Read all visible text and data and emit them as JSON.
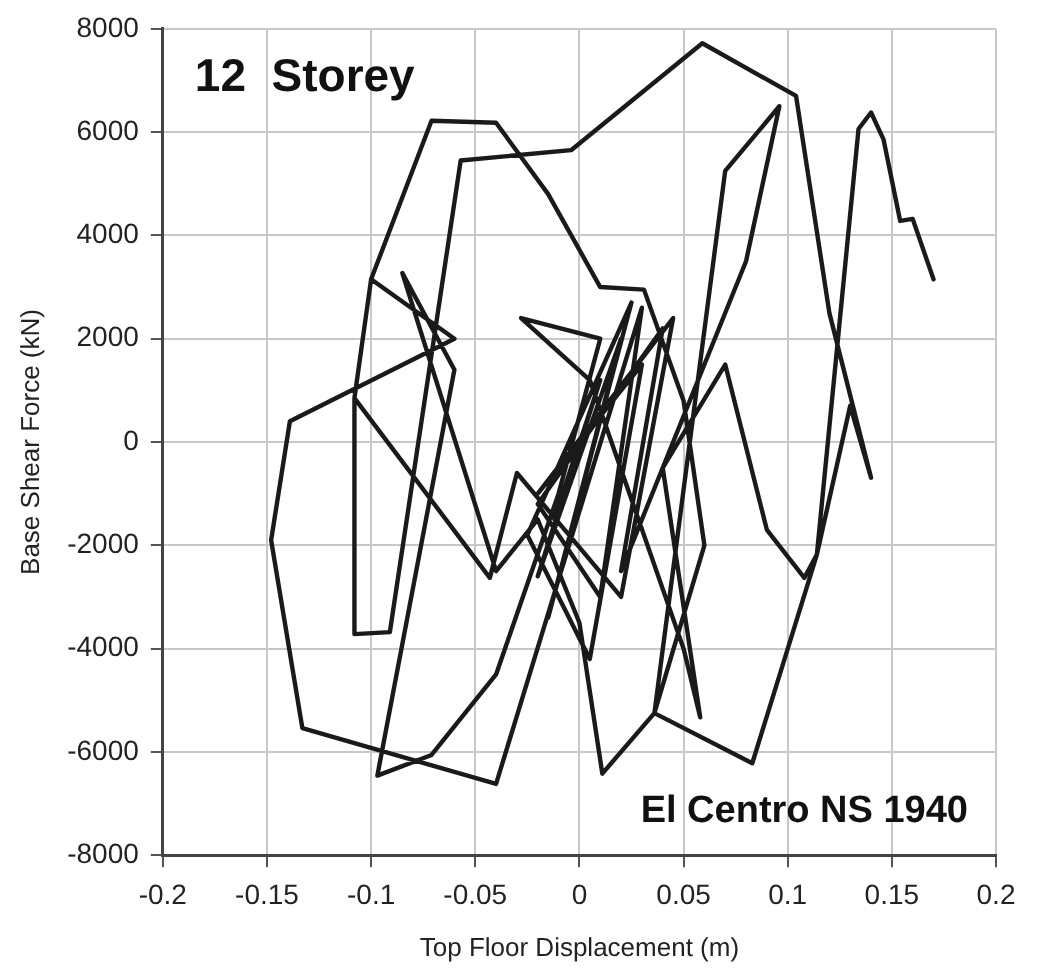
{
  "chart_data": {
    "type": "line",
    "xlabel": "Top Floor Displacement (m)",
    "ylabel": "Base Shear Force (kN)",
    "annotations": [
      "12  Storey",
      "El Centro NS 1940"
    ],
    "xlim": [
      -0.2,
      0.2
    ],
    "xticks": [
      -0.2,
      -0.15,
      -0.1,
      -0.05,
      0,
      0.05,
      0.1,
      0.15,
      0.2
    ],
    "ylim": [
      -8000,
      8000
    ],
    "yticks": [
      -8000,
      -6000,
      -4000,
      -2000,
      0,
      2000,
      4000,
      6000,
      8000
    ],
    "grid": true,
    "legend": false,
    "marker": "none",
    "line_style": "solid",
    "series": [
      {
        "color": "#1a1a1a",
        "x": [
          0,
          -0.012,
          0.01,
          -0.02,
          0.02,
          -0.015,
          0.025,
          -0.025,
          0.005,
          0.03,
          -0.02,
          0.045,
          0.02,
          -0.03,
          -0.043,
          -0.108,
          -0.1,
          -0.071,
          -0.04,
          -0.015,
          0.01,
          0.031,
          0.05,
          0.06,
          0.036,
          0.011,
          0,
          -0.02,
          -0.04,
          -0.085,
          -0.06,
          -0.097,
          -0.071,
          -0.04,
          -0.01,
          0.01,
          -0.028,
          0.005,
          0.05,
          0.058,
          0.04,
          0.07,
          0.09,
          0.108,
          0.114,
          0.13,
          0.14,
          0.12,
          0.104,
          0.059,
          -0.004,
          -0.057,
          -0.091,
          -0.108,
          -0.108,
          -0.1,
          -0.06,
          -0.139,
          -0.148,
          -0.133,
          -0.04,
          -0.005,
          0.03,
          0.01,
          -0.02,
          0.04,
          0.02,
          0.08,
          0.096,
          0.07,
          0.036,
          0.083,
          0.114,
          0.134,
          0.14,
          0.146,
          0.154,
          0.16,
          0.17
        ],
        "values": [
          0,
          -1500,
          1200,
          -2600,
          2000,
          -3400,
          2700,
          -1800,
          -4200,
          1500,
          -1000,
          2400,
          -3000,
          -600,
          -2630,
          850,
          3150,
          6220,
          6180,
          4800,
          3000,
          2950,
          800,
          -2000,
          -5250,
          -6420,
          -3500,
          -1500,
          -2500,
          3270,
          1400,
          -6460,
          -6060,
          -4500,
          -1000,
          2000,
          2400,
          1200,
          -4000,
          -5330,
          -500,
          1500,
          -1700,
          -2630,
          -2180,
          700,
          -690,
          2500,
          6700,
          7720,
          5650,
          5450,
          -3680,
          -3720,
          850,
          3150,
          2000,
          400,
          -1900,
          -5540,
          -6620,
          -2000,
          2600,
          -3000,
          -1200,
          2200,
          -2500,
          3500,
          6500,
          5250,
          -5250,
          -6220,
          -2180,
          6060,
          6380,
          5860,
          4280,
          4320,
          3150
        ]
      }
    ]
  }
}
